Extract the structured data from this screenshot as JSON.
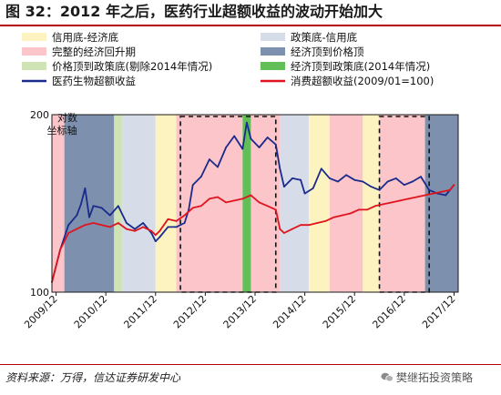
{
  "figure": {
    "title": "图 32：2012 年之后，医药行业超额收益的波动开始加大",
    "source": "资料来源：万得，信达证券研发中心",
    "watermark": "樊继拓投资策略"
  },
  "chart_data": {
    "type": "line",
    "y_axis_note": "对数坐标轴",
    "ylim": [
      100,
      200
    ],
    "y_ticks": [
      100,
      200
    ],
    "log_scale": true,
    "x_range": [
      "2009-11",
      "2018-01"
    ],
    "x_ticks": [
      "2009/12",
      "2010/12",
      "2011/12",
      "2012/12",
      "2013/12",
      "2014/12",
      "2015/12",
      "2016/12",
      "2017/12"
    ],
    "legend_placement": "top",
    "regime_legend": [
      {
        "key": "credit_bottom",
        "label": "信用底-经济底",
        "color": "#fdf3c0"
      },
      {
        "key": "policy_bottom",
        "label": "政策底-信用底",
        "color": "#d6dde8"
      },
      {
        "key": "recovery",
        "label": "完整的经济回升期",
        "color": "#fbc5c9"
      },
      {
        "key": "econ_top",
        "label": "经济顶到价格顶",
        "color": "#7d90ae"
      },
      {
        "key": "price_top",
        "label": "价格顶到政策底(剔除2014年情况)",
        "color": "#cfe3b5"
      },
      {
        "key": "econ_top_2014",
        "label": "经济顶到政策底(2014年情况)",
        "color": "#62bf57"
      }
    ],
    "periods": [
      {
        "start": "2009-11",
        "end": "2010-02",
        "phase": "recovery"
      },
      {
        "start": "2010-02",
        "end": "2011-02",
        "phase": "econ_top"
      },
      {
        "start": "2011-02",
        "end": "2011-04",
        "phase": "price_top"
      },
      {
        "start": "2011-04",
        "end": "2011-12",
        "phase": "policy_bottom"
      },
      {
        "start": "2011-12",
        "end": "2012-05",
        "phase": "credit_bottom"
      },
      {
        "start": "2012-05",
        "end": "2013-09",
        "phase": "recovery"
      },
      {
        "start": "2013-09",
        "end": "2013-11",
        "phase": "econ_top_2014"
      },
      {
        "start": "2013-11",
        "end": "2014-06",
        "phase": "recovery"
      },
      {
        "start": "2014-06",
        "end": "2015-01",
        "phase": "policy_bottom"
      },
      {
        "start": "2015-01",
        "end": "2015-06",
        "phase": "credit_bottom"
      },
      {
        "start": "2015-06",
        "end": "2016-02",
        "phase": "recovery"
      },
      {
        "start": "2016-02",
        "end": "2016-06",
        "phase": "credit_bottom"
      },
      {
        "start": "2016-06",
        "end": "2017-05",
        "phase": "recovery"
      },
      {
        "start": "2017-05",
        "end": "2018-01",
        "phase": "econ_top"
      }
    ],
    "highlight_windows": [
      {
        "start": "2012-06",
        "end": "2014-05"
      },
      {
        "start": "2016-06",
        "end": "2017-06"
      }
    ],
    "series_legend": [
      {
        "name": "医药生物超额收益",
        "color": "#1a2b8c"
      },
      {
        "name": "消费超额收益(2009/01=100)",
        "color": "#e0141e"
      }
    ],
    "series": [
      {
        "name": "医药生物超额收益",
        "color": "#1a2b8c",
        "x": [
          "2009-11",
          "2010-01",
          "2010-03",
          "2010-05",
          "2010-06",
          "2010-07",
          "2010-08",
          "2010-09",
          "2010-11",
          "2011-01",
          "2011-03",
          "2011-05",
          "2011-07",
          "2011-09",
          "2011-11",
          "2011-12",
          "2012-01",
          "2012-03",
          "2012-05",
          "2012-07",
          "2012-08",
          "2012-09",
          "2012-11",
          "2013-01",
          "2013-03",
          "2013-05",
          "2013-07",
          "2013-09",
          "2013-10",
          "2013-11",
          "2014-01",
          "2014-03",
          "2014-05",
          "2014-06",
          "2014-07",
          "2014-09",
          "2014-11",
          "2014-12",
          "2015-02",
          "2015-04",
          "2015-06",
          "2015-08",
          "2015-10",
          "2015-12",
          "2016-02",
          "2016-04",
          "2016-06",
          "2016-08",
          "2016-10",
          "2016-12",
          "2017-02",
          "2017-04",
          "2017-06",
          "2017-08",
          "2017-10",
          "2017-12"
        ],
        "y": [
          104,
          118,
          130,
          135,
          141,
          150,
          134,
          140,
          139,
          135,
          140,
          131,
          128,
          131,
          126,
          122,
          124,
          129,
          129,
          131,
          138,
          152,
          157,
          168,
          163,
          176,
          184,
          175,
          194,
          182,
          176,
          183,
          178,
          162,
          151,
          156,
          155,
          147,
          150,
          162,
          156,
          154,
          158,
          155,
          154,
          151,
          149,
          154,
          156,
          152,
          154,
          157,
          149,
          147,
          146,
          152
        ]
      },
      {
        "name": "消费超额收益(2009/01=100)",
        "color": "#e0141e",
        "x": [
          "2009-11",
          "2010-01",
          "2010-03",
          "2010-05",
          "2010-07",
          "2010-09",
          "2010-11",
          "2011-01",
          "2011-03",
          "2011-05",
          "2011-07",
          "2011-09",
          "2011-11",
          "2011-12",
          "2012-01",
          "2012-03",
          "2012-05",
          "2012-07",
          "2012-09",
          "2012-11",
          "2013-01",
          "2013-03",
          "2013-05",
          "2013-07",
          "2013-09",
          "2013-11",
          "2014-01",
          "2014-03",
          "2014-05",
          "2014-06",
          "2014-07",
          "2014-09",
          "2014-11",
          "2015-01",
          "2015-03",
          "2015-05",
          "2015-07",
          "2015-09",
          "2015-11",
          "2016-01",
          "2016-03",
          "2016-05",
          "2016-07",
          "2016-09",
          "2016-11",
          "2017-01",
          "2017-03",
          "2017-05",
          "2017-07",
          "2017-09",
          "2017-11",
          "2017-12"
        ],
        "y": [
          104,
          118,
          126,
          128,
          130,
          131,
          130,
          129,
          131,
          128,
          127,
          129,
          127,
          125,
          127,
          133,
          132,
          135,
          139,
          140,
          144,
          145,
          142,
          143,
          144,
          146,
          142,
          140,
          138,
          128,
          126,
          128,
          130,
          130,
          131,
          132,
          134,
          135,
          136,
          138,
          138,
          140,
          141,
          142,
          143,
          144,
          145,
          146,
          147,
          148,
          149,
          152
        ]
      }
    ]
  },
  "colors": {
    "frame": "#1a1a1a",
    "dash_box": "#111111",
    "title_rule": "#b30000"
  }
}
